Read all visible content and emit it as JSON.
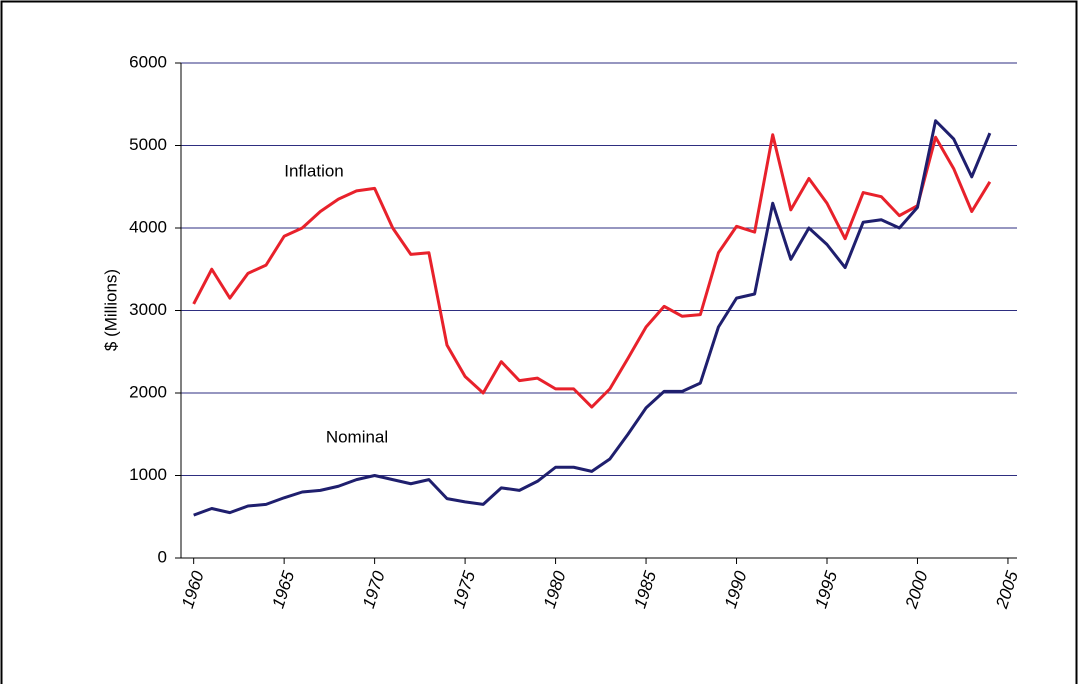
{
  "chart_data": {
    "type": "line",
    "y_label": "$ (Millions)",
    "annotations": [
      "Inflation",
      "Nominal"
    ],
    "x": [
      1960,
      1961,
      1962,
      1963,
      1964,
      1965,
      1966,
      1967,
      1968,
      1969,
      1970,
      1971,
      1972,
      1973,
      1974,
      1975,
      1976,
      1977,
      1978,
      1979,
      1980,
      1981,
      1982,
      1983,
      1984,
      1985,
      1986,
      1987,
      1988,
      1989,
      1990,
      1991,
      1992,
      1993,
      1994,
      1995,
      1996,
      1997,
      1998,
      1999,
      2000,
      2001,
      2002,
      2003,
      2004
    ],
    "series": [
      {
        "name": "Inflation",
        "color": "#e8212b",
        "values": [
          3080,
          3500,
          3150,
          3450,
          3550,
          3900,
          4000,
          4200,
          4350,
          4450,
          4480,
          4000,
          3680,
          3700,
          2580,
          2200,
          2000,
          2380,
          2150,
          2180,
          2050,
          2050,
          1830,
          2050,
          2420,
          2800,
          3050,
          2930,
          2950,
          3700,
          4020,
          3950,
          5130,
          4220,
          4600,
          4300,
          3870,
          4430,
          4380,
          4150,
          4270,
          5100,
          4720,
          4200,
          4560
        ]
      },
      {
        "name": "Nominal",
        "color": "#1f1f6e",
        "values": [
          520,
          600,
          550,
          630,
          650,
          730,
          800,
          820,
          870,
          950,
          1000,
          950,
          900,
          950,
          720,
          680,
          650,
          850,
          820,
          930,
          1100,
          1100,
          1050,
          1200,
          1500,
          1820,
          2020,
          2020,
          2120,
          2800,
          3150,
          3200,
          4300,
          3620,
          4000,
          3800,
          3520,
          4070,
          4100,
          4000,
          4250,
          5300,
          5080,
          4620,
          5150
        ]
      }
    ],
    "xlim": [
      1959.3,
      2005.5
    ],
    "xticks": [
      1960,
      1965,
      1970,
      1975,
      1980,
      1985,
      1990,
      1995,
      2000,
      2005
    ],
    "ylim": [
      0,
      6000
    ],
    "yticks": [
      0,
      1000,
      2000,
      3000,
      4000,
      5000,
      6000
    ],
    "grid": true
  }
}
